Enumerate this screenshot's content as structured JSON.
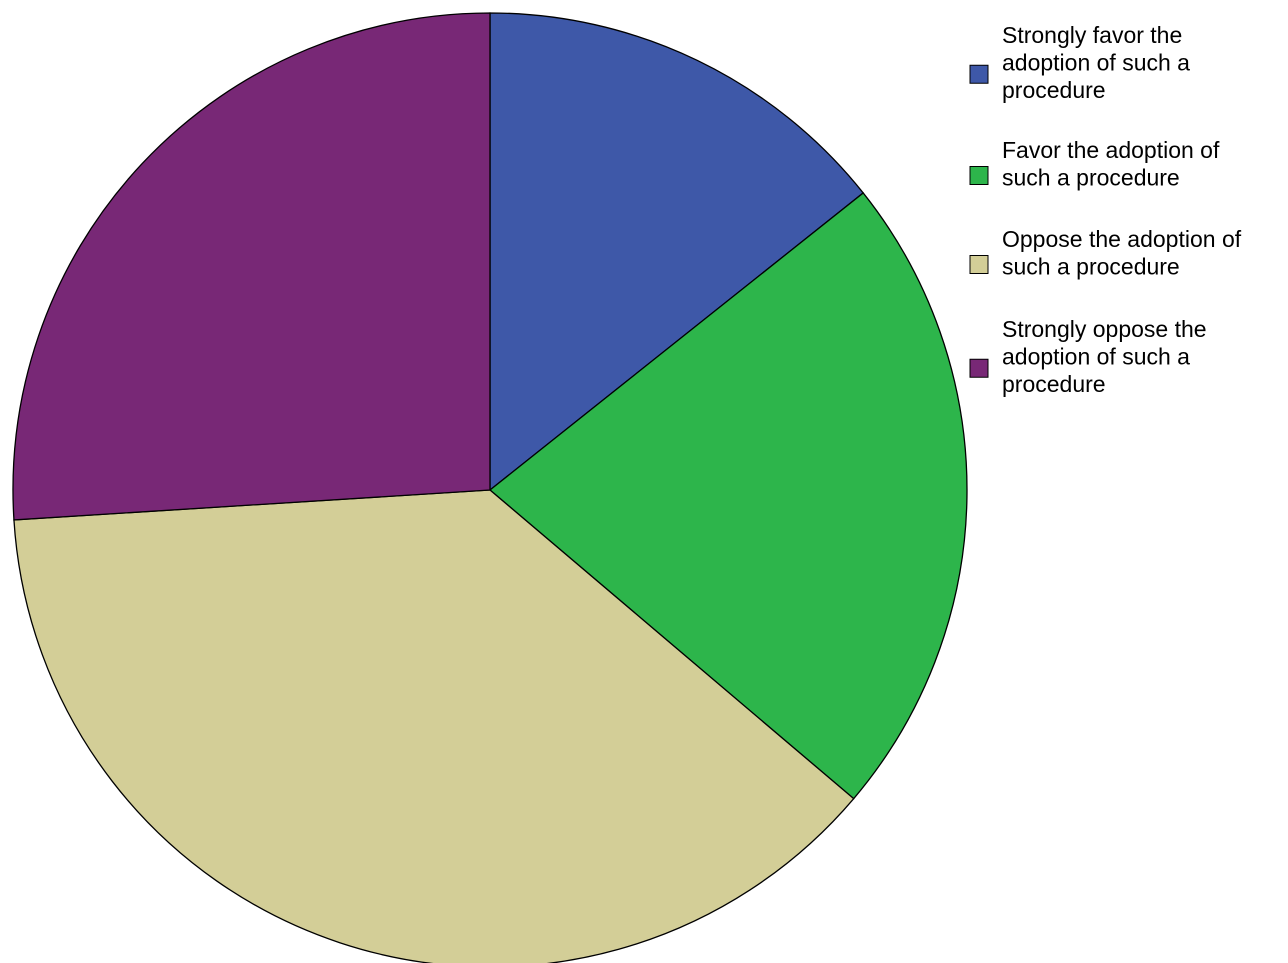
{
  "chart_data": {
    "type": "pie",
    "title": "",
    "slices": [
      {
        "label": "Strongly favor the adoption of such a procedure",
        "value": 14.3,
        "color": "#3e58a8"
      },
      {
        "label": "Favor the adoption of such a procedure",
        "value": 21.9,
        "color": "#2db54b"
      },
      {
        "label": "Oppose the adoption of such a procedure",
        "value": 37.8,
        "color": "#d3ce97"
      },
      {
        "label": "Strongly oppose the adoption of such a procedure",
        "value": 26.0,
        "color": "#782876"
      }
    ],
    "legend_position": "right",
    "start_angle": "12 o'clock",
    "direction": "clockwise"
  },
  "legend": {
    "items": [
      {
        "lines": [
          "Strongly favor the",
          "adoption of such a",
          "procedure"
        ]
      },
      {
        "lines": [
          "Favor the adoption of",
          "such a procedure"
        ]
      },
      {
        "lines": [
          "Oppose the adoption of",
          "such a procedure"
        ]
      },
      {
        "lines": [
          "Strongly oppose the",
          "adoption of such a",
          "procedure"
        ]
      }
    ]
  }
}
